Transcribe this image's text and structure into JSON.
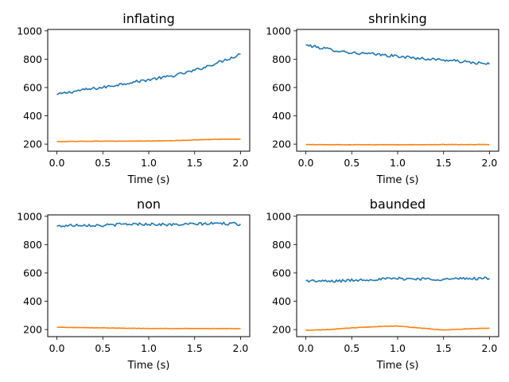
{
  "chart_data": [
    {
      "type": "line",
      "title": "inflating",
      "xlabel": "Time (s)",
      "ylabel": "",
      "xlim": [
        -0.1,
        2.1
      ],
      "ylim": [
        150,
        1010
      ],
      "xticks": [
        0.0,
        0.5,
        1.0,
        1.5,
        2.0
      ],
      "xtick_labels": [
        "0.0",
        "0.5",
        "1.0",
        "1.5",
        "2.0"
      ],
      "yticks": [
        200,
        400,
        600,
        800,
        1000
      ],
      "ytick_labels": [
        "200",
        "400",
        "600",
        "800",
        "1000"
      ],
      "grid": false,
      "x": [
        0.0,
        0.25,
        0.5,
        0.75,
        1.0,
        1.25,
        1.5,
        1.75,
        2.0
      ],
      "series": [
        {
          "color": "#1f77b4",
          "values": [
            550,
            580,
            600,
            630,
            655,
            680,
            720,
            775,
            835
          ]
        },
        {
          "color": "#ff7f0e",
          "values": [
            218,
            220,
            221,
            221,
            222,
            224,
            230,
            234,
            236
          ]
        }
      ]
    },
    {
      "type": "line",
      "title": "shrinking",
      "xlabel": "Time (s)",
      "ylabel": "",
      "xlim": [
        -0.1,
        2.1
      ],
      "ylim": [
        150,
        1010
      ],
      "xticks": [
        0.0,
        0.5,
        1.0,
        1.5,
        2.0
      ],
      "xtick_labels": [
        "0.0",
        "0.5",
        "1.0",
        "1.5",
        "2.0"
      ],
      "yticks": [
        200,
        400,
        600,
        800,
        1000
      ],
      "ytick_labels": [
        "200",
        "400",
        "600",
        "800",
        "1000"
      ],
      "grid": false,
      "x": [
        0.0,
        0.25,
        0.5,
        0.75,
        1.0,
        1.25,
        1.5,
        1.75,
        2.0
      ],
      "series": [
        {
          "color": "#1f77b4",
          "values": [
            900,
            870,
            845,
            835,
            820,
            805,
            795,
            780,
            765
          ]
        },
        {
          "color": "#ff7f0e",
          "values": [
            197,
            196,
            196,
            196,
            196,
            196,
            197,
            197,
            197
          ]
        }
      ]
    },
    {
      "type": "line",
      "title": "non",
      "xlabel": "Time (s)",
      "ylabel": "",
      "xlim": [
        -0.1,
        2.1
      ],
      "ylim": [
        150,
        1010
      ],
      "xticks": [
        0.0,
        0.5,
        1.0,
        1.5,
        2.0
      ],
      "xtick_labels": [
        "0.0",
        "0.5",
        "1.0",
        "1.5",
        "2.0"
      ],
      "yticks": [
        200,
        400,
        600,
        800,
        1000
      ],
      "ytick_labels": [
        "200",
        "400",
        "600",
        "800",
        "1000"
      ],
      "grid": false,
      "x": [
        0.0,
        0.25,
        0.5,
        0.75,
        1.0,
        1.25,
        1.5,
        1.75,
        2.0
      ],
      "series": [
        {
          "color": "#1f77b4",
          "values": [
            930,
            940,
            935,
            945,
            945,
            940,
            945,
            950,
            945
          ]
        },
        {
          "color": "#ff7f0e",
          "values": [
            216,
            214,
            212,
            209,
            208,
            207,
            207,
            207,
            207
          ]
        }
      ]
    },
    {
      "type": "line",
      "title": "baunded",
      "xlabel": "Time (s)",
      "ylabel": "",
      "xlim": [
        -0.1,
        2.1
      ],
      "ylim": [
        150,
        1010
      ],
      "xticks": [
        0.0,
        0.5,
        1.0,
        1.5,
        2.0
      ],
      "xtick_labels": [
        "0.0",
        "0.5",
        "1.0",
        "1.5",
        "2.0"
      ],
      "yticks": [
        200,
        400,
        600,
        800,
        1000
      ],
      "ytick_labels": [
        "200",
        "400",
        "600",
        "800",
        "1000"
      ],
      "grid": false,
      "x": [
        0.0,
        0.25,
        0.5,
        0.75,
        1.0,
        1.25,
        1.5,
        1.75,
        2.0
      ],
      "series": [
        {
          "color": "#1f77b4",
          "values": [
            545,
            540,
            548,
            555,
            560,
            558,
            555,
            560,
            562
          ]
        },
        {
          "color": "#ff7f0e",
          "values": [
            195,
            200,
            212,
            220,
            225,
            210,
            197,
            205,
            210
          ]
        }
      ]
    }
  ]
}
